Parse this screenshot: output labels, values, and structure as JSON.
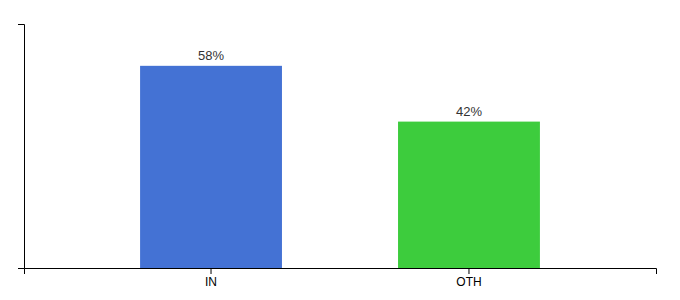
{
  "chart_data": {
    "type": "bar",
    "categories": [
      "IN",
      "OTH"
    ],
    "values": [
      58,
      42
    ],
    "colors": [
      "#4472d4",
      "#3dcc3d"
    ],
    "value_labels": [
      "58%",
      "42%"
    ],
    "data_labels": true,
    "ylim": [
      0,
      70
    ],
    "tick_labels": "x"
  }
}
